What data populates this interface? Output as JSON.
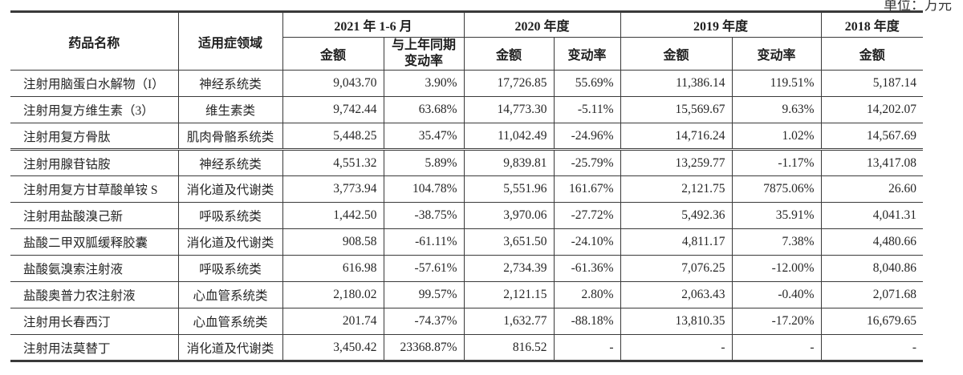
{
  "unit_label": "单位：万元",
  "colors": {
    "text": "#262626",
    "border": "#3a3a3a",
    "background": "#ffffff"
  },
  "table": {
    "header": {
      "drug_name": "药品名称",
      "indication": "适用症领域",
      "period_2021h1": "2021 年 1-6 月",
      "period_2020": "2020 年度",
      "period_2019": "2019 年度",
      "period_2018": "2018 年度",
      "amount": "金额",
      "yoy_change": "与上年同期变动率",
      "change_rate": "变动率"
    },
    "rows": [
      {
        "name": "注射用脑蛋白水解物（I）",
        "indication": "神经系统类",
        "amt_2021h1": "9,043.70",
        "chg_2021h1": "3.90%",
        "amt_2020": "17,726.85",
        "chg_2020": "55.69%",
        "amt_2019": "11,386.14",
        "chg_2019": "119.51%",
        "amt_2018": "5,187.14"
      },
      {
        "name": "注射用复方维生素（3）",
        "indication": "维生素类",
        "amt_2021h1": "9,742.44",
        "chg_2021h1": "63.68%",
        "amt_2020": "14,773.30",
        "chg_2020": "-5.11%",
        "amt_2019": "15,569.67",
        "chg_2019": "9.63%",
        "amt_2018": "14,202.07"
      },
      {
        "name": "注射用复方骨肽",
        "indication": "肌肉骨骼系统类",
        "amt_2021h1": "5,448.25",
        "chg_2021h1": "35.47%",
        "amt_2020": "11,042.49",
        "chg_2020": "-24.96%",
        "amt_2019": "14,716.24",
        "chg_2019": "1.02%",
        "amt_2018": "14,567.69"
      },
      {
        "name": "注射用腺苷钴胺",
        "indication": "神经系统类",
        "amt_2021h1": "4,551.32",
        "chg_2021h1": "5.89%",
        "amt_2020": "9,839.81",
        "chg_2020": "-25.79%",
        "amt_2019": "13,259.77",
        "chg_2019": "-1.17%",
        "amt_2018": "13,417.08"
      },
      {
        "name": "注射用复方甘草酸单铵 S",
        "indication": "消化道及代谢类",
        "amt_2021h1": "3,773.94",
        "chg_2021h1": "104.78%",
        "amt_2020": "5,551.96",
        "chg_2020": "161.67%",
        "amt_2019": "2,121.75",
        "chg_2019": "7875.06%",
        "amt_2018": "26.60"
      },
      {
        "name": "注射用盐酸溴己新",
        "indication": "呼吸系统类",
        "amt_2021h1": "1,442.50",
        "chg_2021h1": "-38.75%",
        "amt_2020": "3,970.06",
        "chg_2020": "-27.72%",
        "amt_2019": "5,492.36",
        "chg_2019": "35.91%",
        "amt_2018": "4,041.31"
      },
      {
        "name": "盐酸二甲双胍缓释胶囊",
        "indication": "消化道及代谢类",
        "amt_2021h1": "908.58",
        "chg_2021h1": "-61.11%",
        "amt_2020": "3,651.50",
        "chg_2020": "-24.10%",
        "amt_2019": "4,811.17",
        "chg_2019": "7.38%",
        "amt_2018": "4,480.66"
      },
      {
        "name": "盐酸氨溴索注射液",
        "indication": "呼吸系统类",
        "amt_2021h1": "616.98",
        "chg_2021h1": "-57.61%",
        "amt_2020": "2,734.39",
        "chg_2020": "-61.36%",
        "amt_2019": "7,076.25",
        "chg_2019": "-12.00%",
        "amt_2018": "8,040.86"
      },
      {
        "name": "盐酸奥普力农注射液",
        "indication": "心血管系统类",
        "amt_2021h1": "2,180.02",
        "chg_2021h1": "99.57%",
        "amt_2020": "2,121.15",
        "chg_2020": "2.80%",
        "amt_2019": "2,063.43",
        "chg_2019": "-0.40%",
        "amt_2018": "2,071.68"
      },
      {
        "name": "注射用长春西汀",
        "indication": "心血管系统类",
        "amt_2021h1": "201.74",
        "chg_2021h1": "-74.37%",
        "amt_2020": "1,632.77",
        "chg_2020": "-88.18%",
        "amt_2019": "13,810.35",
        "chg_2019": "-17.20%",
        "amt_2018": "16,679.65"
      },
      {
        "name": "注射用法莫替丁",
        "indication": "消化道及代谢类",
        "amt_2021h1": "3,450.42",
        "chg_2021h1": "23368.87%",
        "amt_2020": "816.52",
        "chg_2020": "-",
        "amt_2019": "-",
        "chg_2019": "-",
        "amt_2018": "-"
      }
    ]
  }
}
